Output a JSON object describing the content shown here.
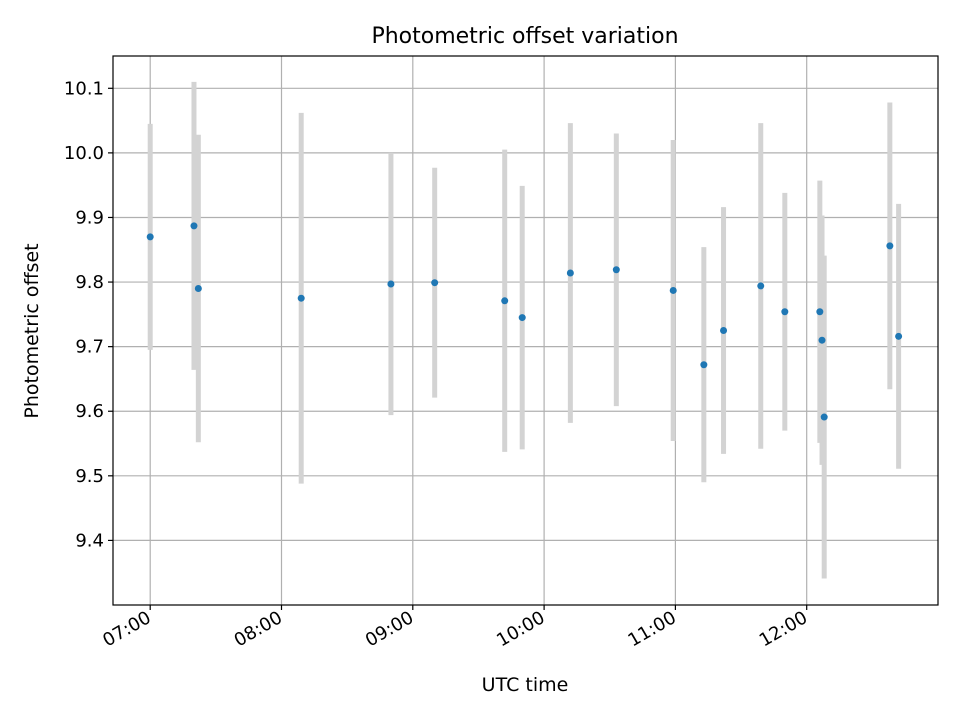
{
  "chart_data": {
    "type": "scatter",
    "title": "Photometric offset variation",
    "xlabel": "UTC time",
    "ylabel": "Photometric offset",
    "x_tick_labels": [
      "07:00",
      "08:00",
      "09:00",
      "10:00",
      "11:00",
      "12:00"
    ],
    "y_tick_labels": [
      "9.4",
      "9.5",
      "9.6",
      "9.7",
      "9.8",
      "9.9",
      "10.0",
      "10.1"
    ],
    "xlim": [
      "06:43",
      "13:00"
    ],
    "ylim": [
      9.3,
      10.15
    ],
    "grid": true,
    "errorbar_color": "#d3d3d3",
    "marker_color": "#1f77b4",
    "series": [
      {
        "points": [
          {
            "x": "07:00",
            "y": 9.87,
            "yerr": 0.175
          },
          {
            "x": "07:20",
            "y": 9.887,
            "yerr": 0.223
          },
          {
            "x": "07:22",
            "y": 9.79,
            "yerr": 0.238
          },
          {
            "x": "08:09",
            "y": 9.775,
            "yerr": 0.287
          },
          {
            "x": "08:50",
            "y": 9.797,
            "yerr": 0.203
          },
          {
            "x": "09:10",
            "y": 9.799,
            "yerr": 0.178
          },
          {
            "x": "09:42",
            "y": 9.771,
            "yerr": 0.234
          },
          {
            "x": "09:50",
            "y": 9.745,
            "yerr": 0.204
          },
          {
            "x": "10:12",
            "y": 9.814,
            "yerr": 0.232
          },
          {
            "x": "10:33",
            "y": 9.819,
            "yerr": 0.211
          },
          {
            "x": "10:59",
            "y": 9.787,
            "yerr": 0.233
          },
          {
            "x": "11:13",
            "y": 9.672,
            "yerr": 0.182
          },
          {
            "x": "11:22",
            "y": 9.725,
            "yerr": 0.191
          },
          {
            "x": "11:39",
            "y": 9.794,
            "yerr": 0.252
          },
          {
            "x": "11:50",
            "y": 9.754,
            "yerr": 0.184
          },
          {
            "x": "12:06",
            "y": 9.754,
            "yerr": 0.203
          },
          {
            "x": "12:07",
            "y": 9.71,
            "yerr": 0.193
          },
          {
            "x": "12:08",
            "y": 9.591,
            "yerr": 0.25
          },
          {
            "x": "12:38",
            "y": 9.856,
            "yerr": 0.222
          },
          {
            "x": "12:42",
            "y": 9.716,
            "yerr": 0.205
          }
        ]
      }
    ]
  }
}
